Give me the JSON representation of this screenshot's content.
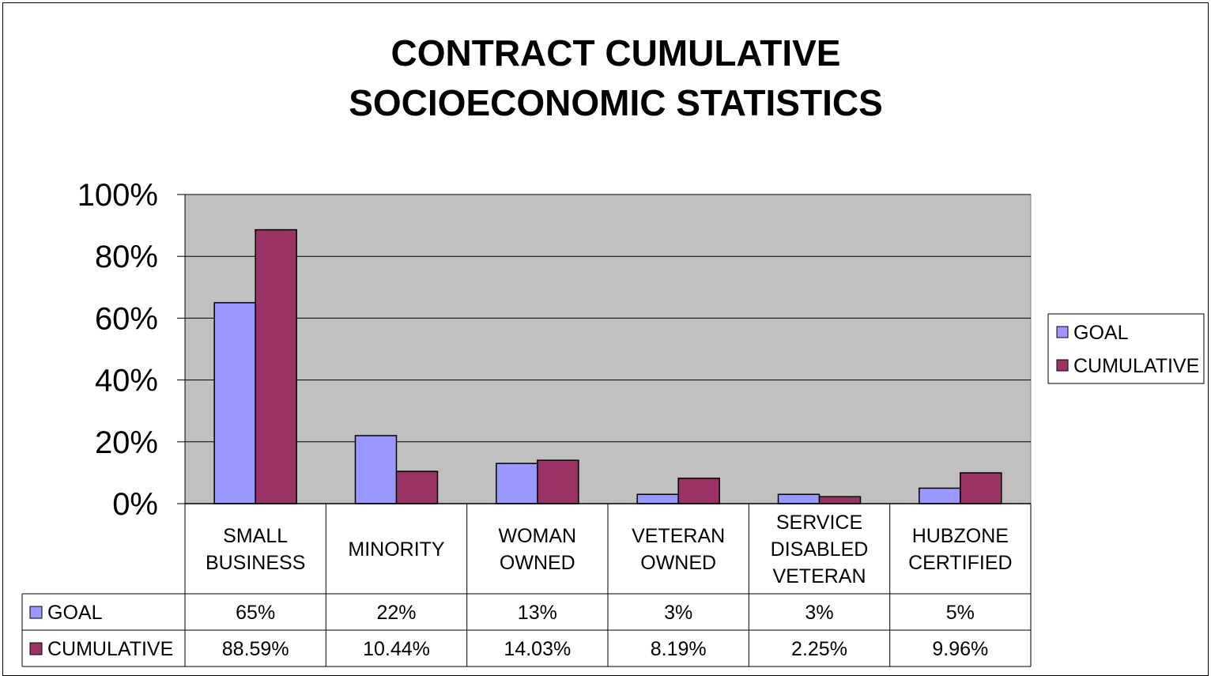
{
  "chart_data": {
    "type": "bar",
    "title_lines": [
      "CONTRACT CUMULATIVE",
      "SOCIOECONOMIC STATISTICS"
    ],
    "categories": [
      [
        "SMALL",
        "BUSINESS"
      ],
      [
        "MINORITY"
      ],
      [
        "WOMAN",
        "OWNED"
      ],
      [
        "VETERAN",
        "OWNED"
      ],
      [
        "SERVICE",
        "DISABLED",
        "VETERAN"
      ],
      [
        "HUBZONE",
        "CERTIFIED"
      ]
    ],
    "series": [
      {
        "name": "GOAL",
        "values": [
          65,
          22,
          13,
          3,
          3,
          5
        ],
        "labels": [
          "65%",
          "22%",
          "13%",
          "3%",
          "3%",
          "5%"
        ],
        "color": "#9999ff"
      },
      {
        "name": "CUMULATIVE",
        "values": [
          88.59,
          10.44,
          14.03,
          8.19,
          2.25,
          9.96
        ],
        "labels": [
          "88.59%",
          "10.44%",
          "14.03%",
          "8.19%",
          "2.25%",
          "9.96%"
        ],
        "color": "#993366"
      }
    ],
    "ylim": [
      0,
      100
    ],
    "yticks": [
      "0%",
      "20%",
      "40%",
      "60%",
      "80%",
      "100%"
    ],
    "plot_background": "#c0c0c0",
    "grid": true,
    "legend_position": "right",
    "data_table": true
  }
}
